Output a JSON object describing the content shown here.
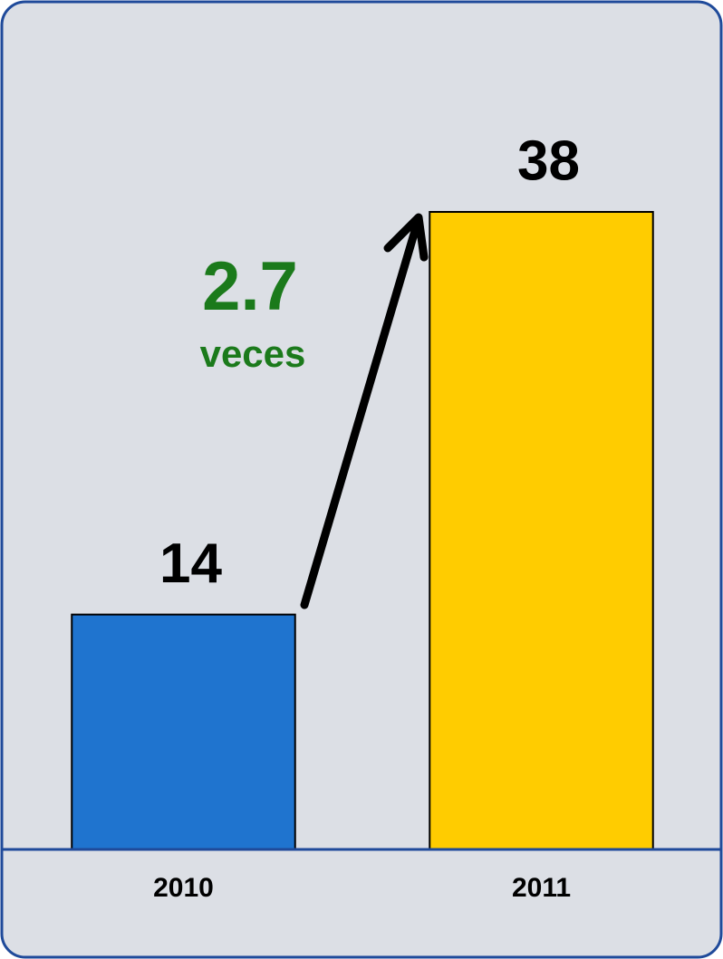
{
  "chart_data": {
    "type": "bar",
    "categories": [
      "2010",
      "2011"
    ],
    "values": [
      14,
      38
    ],
    "colors": [
      "#1f74cf",
      "#ffcc00"
    ],
    "annotations": [
      "2.7",
      "veces"
    ]
  }
}
